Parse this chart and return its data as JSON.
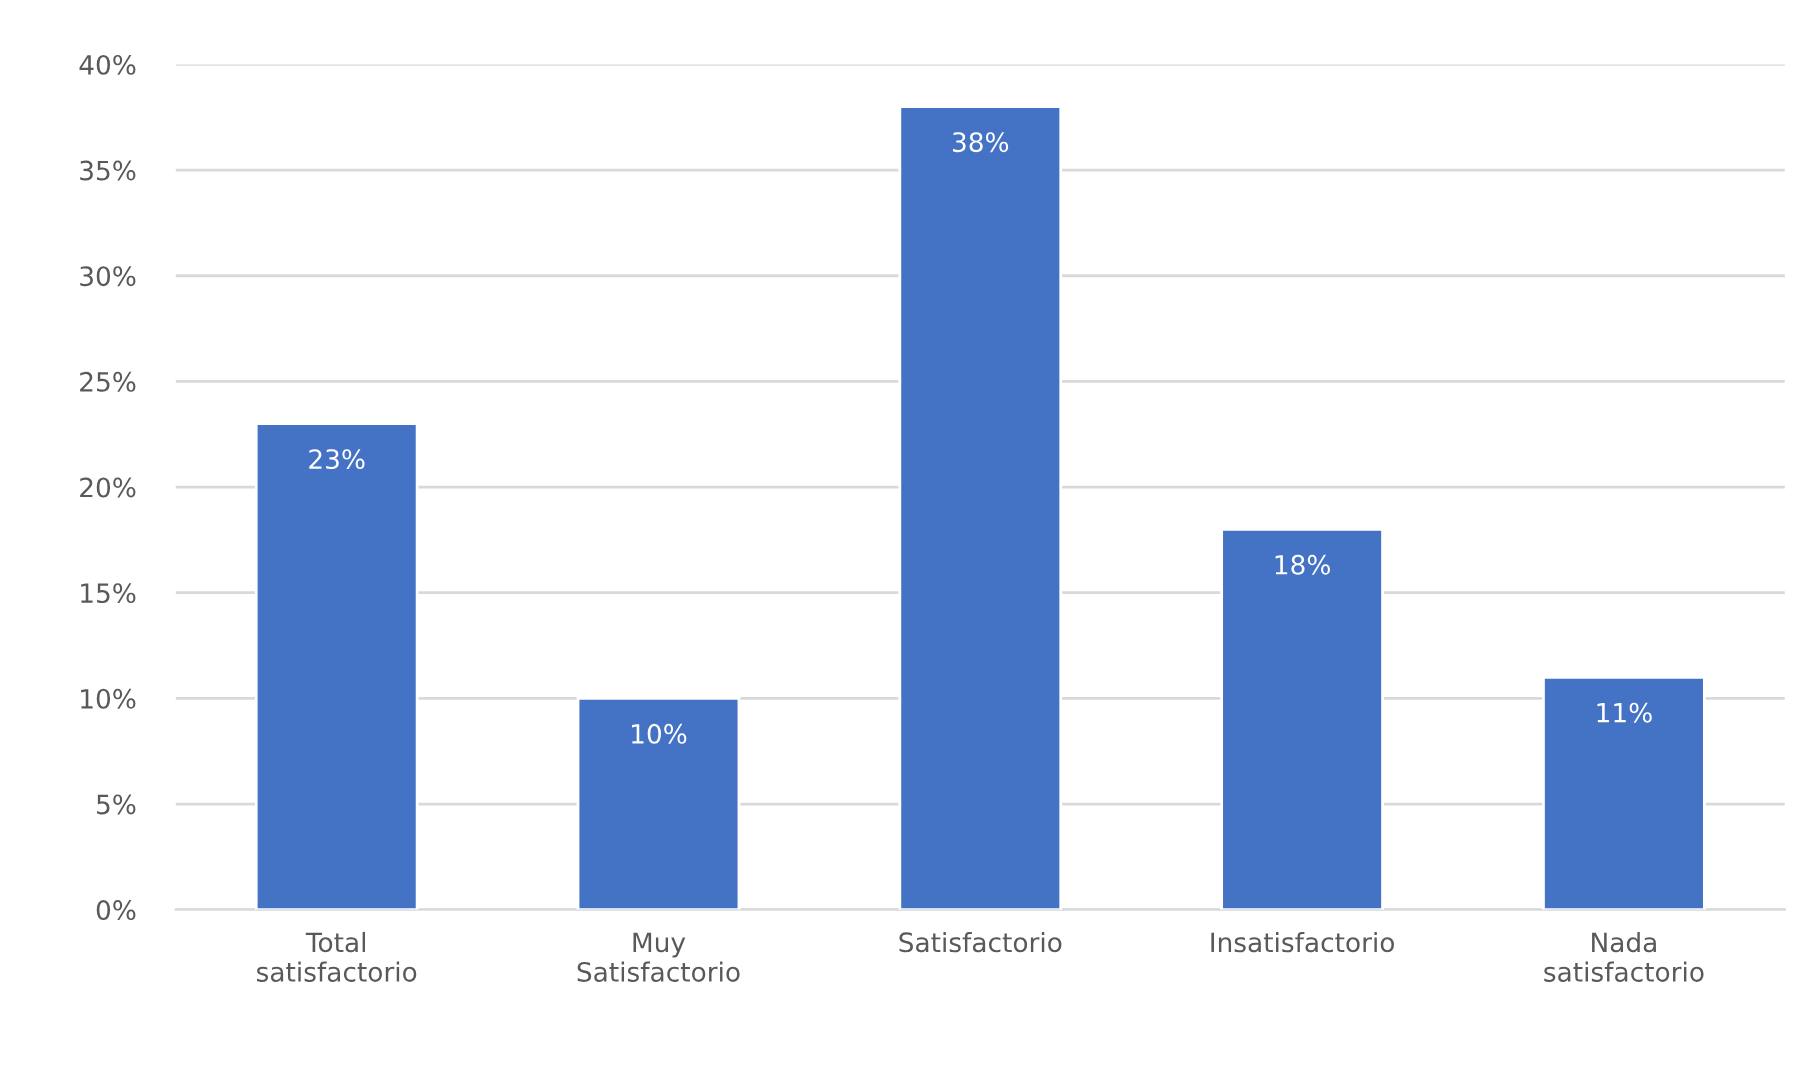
{
  "chart_data": {
    "type": "bar",
    "categories": [
      "Total satisfactorio",
      "Muy Satisfactorio",
      "Satisfactorio",
      "Insatisfactorio",
      "Nada satisfactorio"
    ],
    "values": [
      23,
      10,
      38,
      18,
      11
    ],
    "value_labels": [
      "23%",
      "10%",
      "38%",
      "18%",
      "11%"
    ],
    "color": "#4472c4",
    "ylim": [
      0,
      40
    ],
    "yticks": [
      {
        "value": 0,
        "label": "0%"
      },
      {
        "value": 5,
        "label": "5%"
      },
      {
        "value": 10,
        "label": "10%"
      },
      {
        "value": 15,
        "label": "15%"
      },
      {
        "value": 20,
        "label": "20%"
      },
      {
        "value": 25,
        "label": "25%"
      },
      {
        "value": 30,
        "label": "30%"
      },
      {
        "value": 35,
        "label": "35%"
      },
      {
        "value": 40,
        "label": "40%"
      }
    ],
    "grid": "y"
  }
}
